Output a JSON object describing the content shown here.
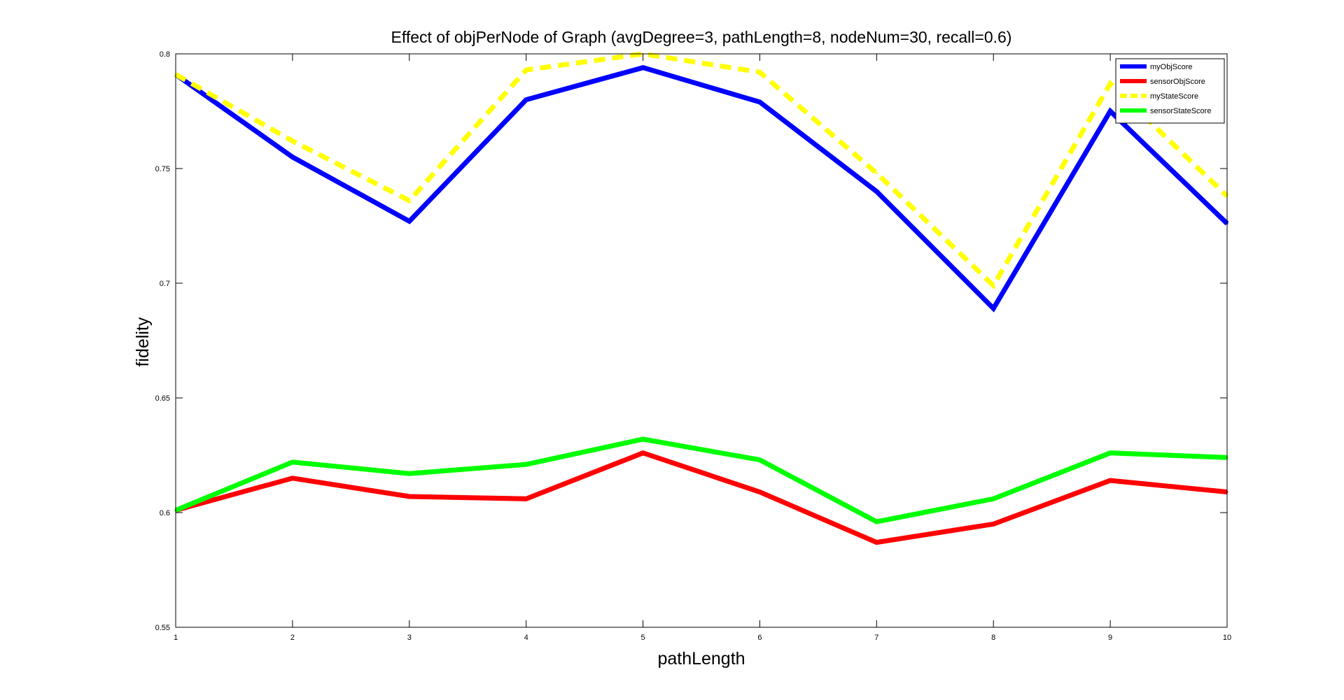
{
  "chart_data": {
    "type": "line",
    "title": "Effect of objPerNode of Graph (avgDegree=3, pathLength=8, nodeNum=30, recall=0.6)",
    "xlabel": "pathLength",
    "ylabel": "fidelity",
    "x": [
      1,
      2,
      3,
      4,
      5,
      6,
      7,
      8,
      9,
      10
    ],
    "xlim": [
      1,
      10
    ],
    "ylim": [
      0.55,
      0.8
    ],
    "xticks": [
      "1",
      "2",
      "3",
      "4",
      "5",
      "6",
      "7",
      "8",
      "9",
      "10"
    ],
    "yticks": [
      "0.55",
      "0.6",
      "0.65",
      "0.7",
      "0.75",
      "0.8"
    ],
    "grid": false,
    "legend_position": "top-right",
    "series": [
      {
        "name": "myObjScore",
        "color": "#0000ff",
        "dash": "solid",
        "values": [
          0.791,
          0.755,
          0.727,
          0.78,
          0.794,
          0.779,
          0.74,
          0.689,
          0.775,
          0.726
        ]
      },
      {
        "name": "sensorObjScore",
        "color": "#ff0000",
        "dash": "solid",
        "values": [
          0.601,
          0.615,
          0.607,
          0.606,
          0.626,
          0.609,
          0.587,
          0.595,
          0.614,
          0.609
        ]
      },
      {
        "name": "myStateScore",
        "color": "#ffff00",
        "dash": "dashed",
        "values": [
          0.791,
          0.762,
          0.736,
          0.793,
          0.8,
          0.792,
          0.748,
          0.699,
          0.787,
          0.738
        ]
      },
      {
        "name": "sensorStateScore",
        "color": "#00ff00",
        "dash": "solid",
        "values": [
          0.601,
          0.622,
          0.617,
          0.621,
          0.632,
          0.623,
          0.596,
          0.606,
          0.626,
          0.624
        ]
      }
    ]
  }
}
